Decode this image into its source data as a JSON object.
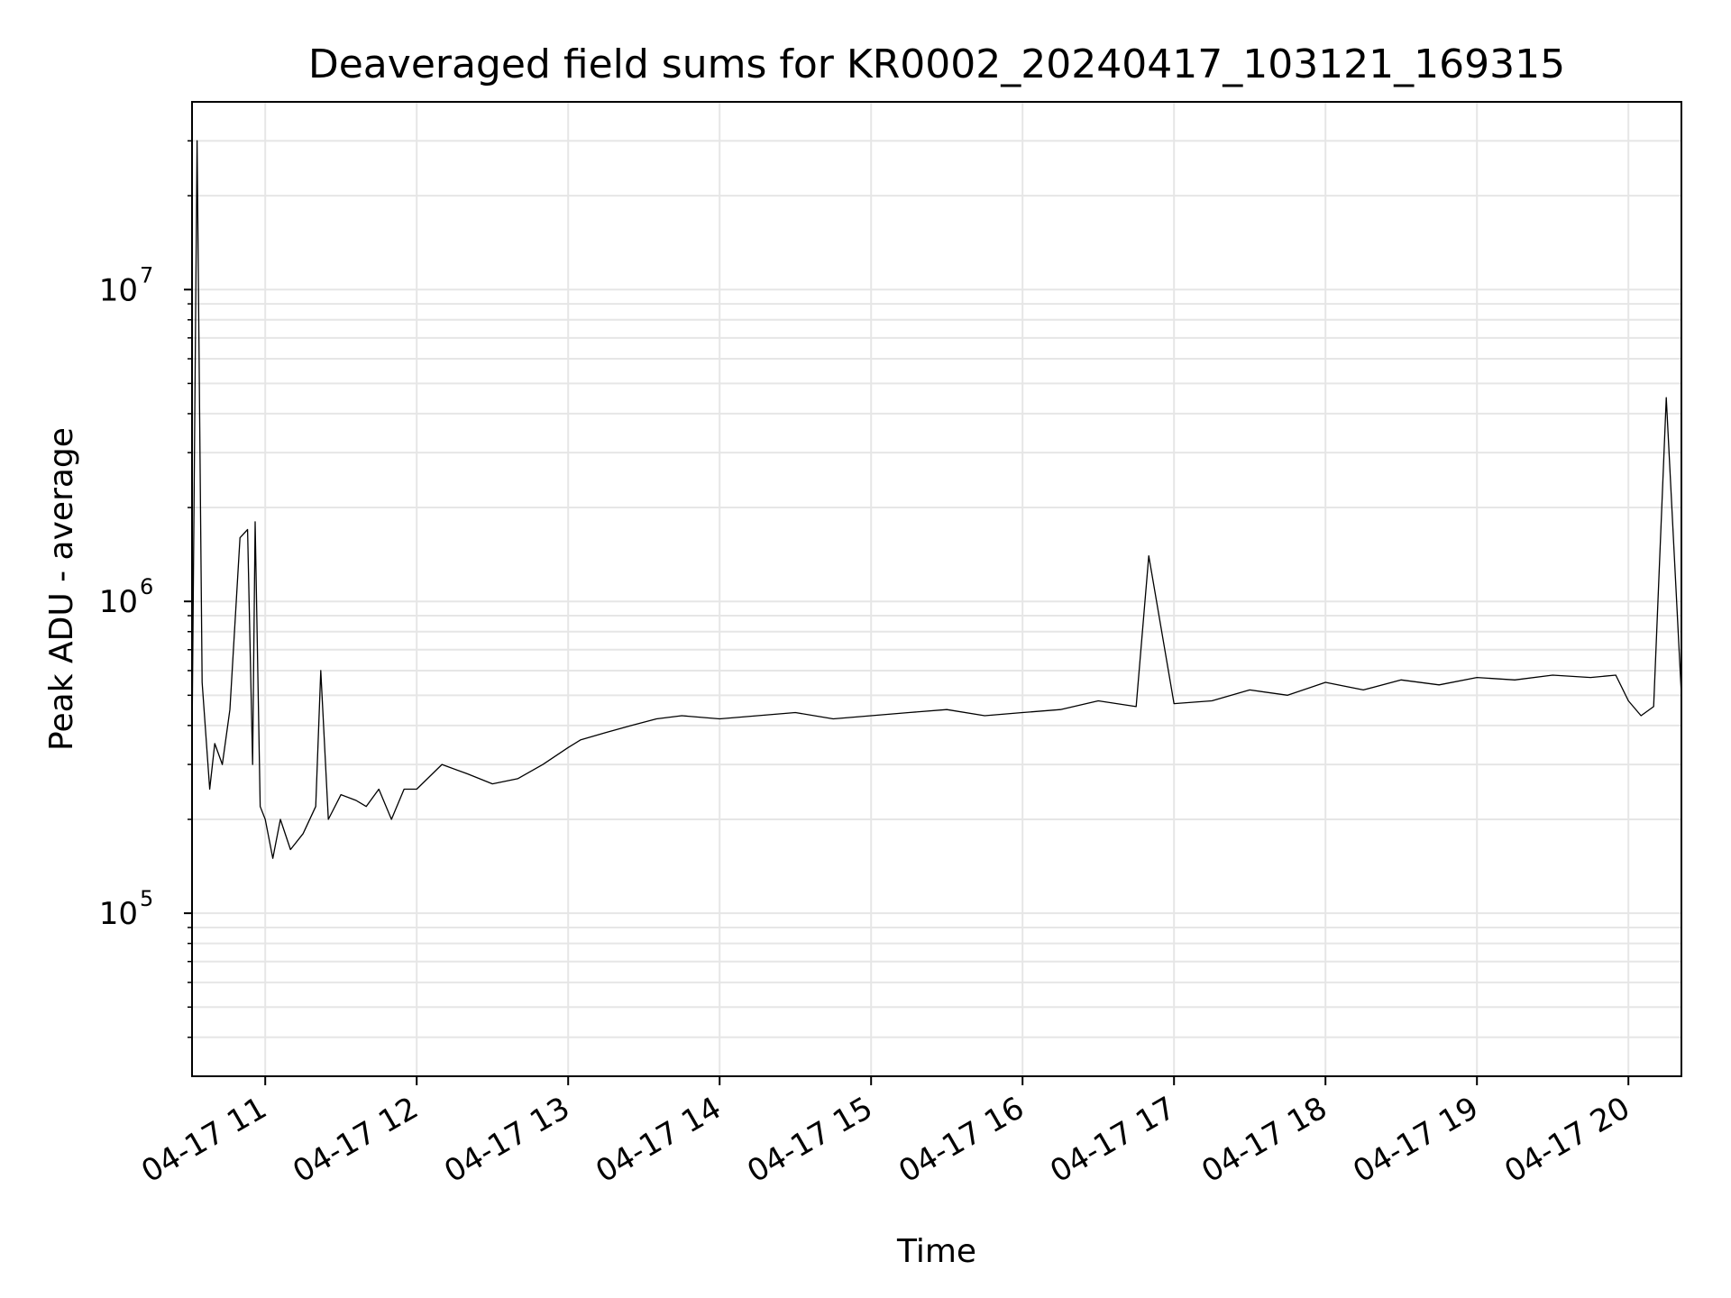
{
  "chart_data": {
    "type": "line",
    "title": "Deaveraged field sums for KR0002_20240417_103121_169315",
    "xlabel": "Time",
    "ylabel": "Peak ADU - average",
    "y_scale": "log",
    "ylim": [
      30000,
      40000000
    ],
    "xlim": [
      "2024-04-17 10:31",
      "2024-04-17 20:21"
    ],
    "grid": "on",
    "line_color": "#000000",
    "grid_color": "#e6e6e6",
    "x_ticks": [
      {
        "value": "2024-04-17 11:00",
        "label": "04-17 11"
      },
      {
        "value": "2024-04-17 12:00",
        "label": "04-17 12"
      },
      {
        "value": "2024-04-17 13:00",
        "label": "04-17 13"
      },
      {
        "value": "2024-04-17 14:00",
        "label": "04-17 14"
      },
      {
        "value": "2024-04-17 15:00",
        "label": "04-17 15"
      },
      {
        "value": "2024-04-17 16:00",
        "label": "04-17 16"
      },
      {
        "value": "2024-04-17 17:00",
        "label": "04-17 17"
      },
      {
        "value": "2024-04-17 18:00",
        "label": "04-17 18"
      },
      {
        "value": "2024-04-17 19:00",
        "label": "04-17 19"
      },
      {
        "value": "2024-04-17 20:00",
        "label": "04-17 20"
      }
    ],
    "y_ticks": [
      {
        "value": 100000,
        "base": "10",
        "exp": "5"
      },
      {
        "value": 1000000,
        "base": "10",
        "exp": "6"
      },
      {
        "value": 10000000,
        "base": "10",
        "exp": "7"
      }
    ],
    "x": [
      "2024-04-17 10:31",
      "2024-04-17 10:33",
      "2024-04-17 10:35",
      "2024-04-17 10:38",
      "2024-04-17 10:40",
      "2024-04-17 10:43",
      "2024-04-17 10:46",
      "2024-04-17 10:50",
      "2024-04-17 10:53",
      "2024-04-17 10:55",
      "2024-04-17 10:56",
      "2024-04-17 10:58",
      "2024-04-17 11:00",
      "2024-04-17 11:03",
      "2024-04-17 11:06",
      "2024-04-17 11:10",
      "2024-04-17 11:15",
      "2024-04-17 11:20",
      "2024-04-17 11:22",
      "2024-04-17 11:25",
      "2024-04-17 11:30",
      "2024-04-17 11:36",
      "2024-04-17 11:40",
      "2024-04-17 11:45",
      "2024-04-17 11:50",
      "2024-04-17 11:55",
      "2024-04-17 12:00",
      "2024-04-17 12:10",
      "2024-04-17 12:20",
      "2024-04-17 12:30",
      "2024-04-17 12:40",
      "2024-04-17 12:50",
      "2024-04-17 13:00",
      "2024-04-17 13:05",
      "2024-04-17 13:15",
      "2024-04-17 13:25",
      "2024-04-17 13:35",
      "2024-04-17 13:45",
      "2024-04-17 14:00",
      "2024-04-17 14:15",
      "2024-04-17 14:30",
      "2024-04-17 14:45",
      "2024-04-17 15:00",
      "2024-04-17 15:15",
      "2024-04-17 15:30",
      "2024-04-17 15:45",
      "2024-04-17 16:00",
      "2024-04-17 16:15",
      "2024-04-17 16:30",
      "2024-04-17 16:45",
      "2024-04-17 16:50",
      "2024-04-17 17:00",
      "2024-04-17 17:15",
      "2024-04-17 17:30",
      "2024-04-17 17:45",
      "2024-04-17 18:00",
      "2024-04-17 18:15",
      "2024-04-17 18:30",
      "2024-04-17 18:45",
      "2024-04-17 19:00",
      "2024-04-17 19:15",
      "2024-04-17 19:30",
      "2024-04-17 19:45",
      "2024-04-17 19:55",
      "2024-04-17 20:00",
      "2024-04-17 20:05",
      "2024-04-17 20:10",
      "2024-04-17 20:15",
      "2024-04-17 20:21"
    ],
    "series": [
      {
        "values": [
          350000,
          30000000,
          550000,
          250000,
          350000,
          300000,
          450000,
          1600000,
          1700000,
          300000,
          1800000,
          220000,
          200000,
          150000,
          200000,
          160000,
          180000,
          220000,
          600000,
          200000,
          240000,
          230000,
          220000,
          250000,
          200000,
          250000,
          250000,
          300000,
          280000,
          260000,
          270000,
          300000,
          340000,
          360000,
          380000,
          400000,
          420000,
          430000,
          420000,
          430000,
          440000,
          420000,
          430000,
          440000,
          450000,
          430000,
          440000,
          450000,
          480000,
          460000,
          1400000,
          470000,
          480000,
          520000,
          500000,
          550000,
          520000,
          560000,
          540000,
          570000,
          560000,
          580000,
          570000,
          580000,
          480000,
          430000,
          460000,
          4500000,
          500000
        ]
      }
    ]
  }
}
